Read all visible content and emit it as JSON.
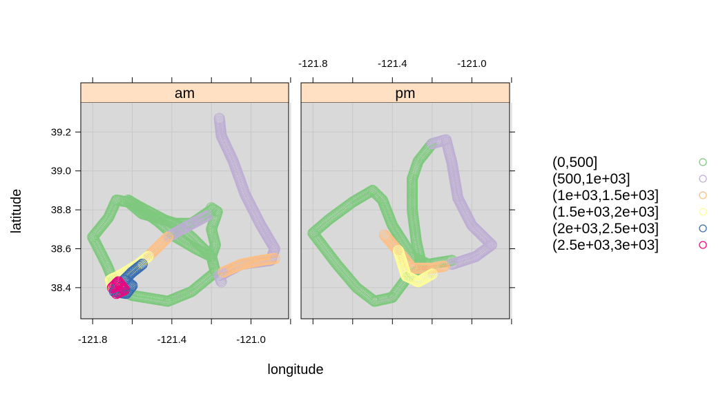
{
  "chart_data": {
    "type": "scatter",
    "xlabel": "longitude",
    "ylabel": "latitude",
    "xlim": [
      -121.86,
      -120.81
    ],
    "ylim": [
      38.24,
      39.35
    ],
    "x_ticks": [
      -121.8,
      -121.6,
      -121.4,
      -121.2,
      -121.0,
      -120.8
    ],
    "x_tick_labels": [
      "-121.8",
      "-121.4",
      "-121.0"
    ],
    "y_ticks": [
      38.4,
      38.6,
      38.8,
      39.0,
      39.2
    ],
    "y_tick_labels": [
      "38.4",
      "38.6",
      "38.8",
      "39.0",
      "39.2"
    ],
    "grid": true,
    "legend_position": "right",
    "legend": [
      {
        "label": "(0,500]",
        "color": "#7fc97f"
      },
      {
        "label": "(500,1e+03]",
        "color": "#beaed4"
      },
      {
        "label": "(1e+03,1.5e+03]",
        "color": "#fdc086"
      },
      {
        "label": "(1.5e+03,2e+03]",
        "color": "#ffff99"
      },
      {
        "label": "(2e+03,2.5e+03]",
        "color": "#386cb0"
      },
      {
        "label": "(2.5e+03,3e+03]",
        "color": "#f0027f"
      }
    ],
    "panels": [
      {
        "name": "am",
        "segments": [
          {
            "group": 0,
            "points": [
              [
                -121.2,
                38.8
              ],
              [
                -121.3,
                38.73
              ],
              [
                -121.38,
                38.73
              ],
              [
                -121.55,
                38.78
              ],
              [
                -121.62,
                38.84
              ],
              [
                -121.68,
                38.85
              ],
              [
                -121.72,
                38.76
              ],
              [
                -121.8,
                38.66
              ],
              [
                -121.73,
                38.52
              ],
              [
                -121.68,
                38.4
              ],
              [
                -121.6,
                38.36
              ],
              [
                -121.42,
                38.33
              ],
              [
                -121.3,
                38.38
              ],
              [
                -121.18,
                38.48
              ],
              [
                -121.2,
                38.56
              ],
              [
                -121.3,
                38.66
              ],
              [
                -121.37,
                38.72
              ],
              [
                -121.44,
                38.75
              ],
              [
                -121.57,
                38.82
              ],
              [
                -121.62,
                38.85
              ],
              [
                -121.47,
                38.74
              ],
              [
                -121.38,
                38.66
              ],
              [
                -121.28,
                38.6
              ],
              [
                -121.2,
                38.56
              ],
              [
                -121.18,
                38.62
              ],
              [
                -121.2,
                38.7
              ],
              [
                -121.17,
                38.79
              ],
              [
                -121.2,
                38.81
              ]
            ]
          },
          {
            "group": 1,
            "points": [
              [
                -121.22,
                38.77
              ],
              [
                -121.35,
                38.7
              ],
              [
                -121.42,
                38.66
              ]
            ]
          },
          {
            "group": 1,
            "points": [
              [
                -121.16,
                39.27
              ],
              [
                -121.15,
                39.18
              ],
              [
                -121.09,
                39.05
              ],
              [
                -121.03,
                38.88
              ],
              [
                -120.95,
                38.72
              ],
              [
                -120.88,
                38.6
              ],
              [
                -120.9,
                38.54
              ],
              [
                -121.05,
                38.52
              ],
              [
                -121.16,
                38.46
              ],
              [
                -121.15,
                38.43
              ]
            ]
          },
          {
            "group": 2,
            "points": [
              [
                -121.14,
                38.48
              ],
              [
                -121.05,
                38.52
              ],
              [
                -120.95,
                38.54
              ],
              [
                -120.88,
                38.55
              ]
            ]
          },
          {
            "group": 2,
            "points": [
              [
                -121.42,
                38.66
              ],
              [
                -121.48,
                38.6
              ],
              [
                -121.52,
                38.56
              ]
            ]
          },
          {
            "group": 3,
            "points": [
              [
                -121.52,
                38.56
              ],
              [
                -121.57,
                38.52
              ],
              [
                -121.65,
                38.47
              ],
              [
                -121.71,
                38.44
              ],
              [
                -121.7,
                38.4
              ],
              [
                -121.66,
                38.39
              ]
            ]
          },
          {
            "group": 4,
            "points": [
              [
                -121.55,
                38.52
              ],
              [
                -121.6,
                38.48
              ],
              [
                -121.64,
                38.44
              ],
              [
                -121.6,
                38.41
              ],
              [
                -121.63,
                38.37
              ],
              [
                -121.69,
                38.38
              ],
              [
                -121.67,
                38.43
              ]
            ]
          },
          {
            "group": 5,
            "points": [
              [
                -121.68,
                38.37
              ],
              [
                -121.64,
                38.39
              ],
              [
                -121.67,
                38.43
              ],
              [
                -121.7,
                38.4
              ]
            ]
          }
        ]
      },
      {
        "name": "pm",
        "segments": [
          {
            "group": 0,
            "points": [
              [
                -121.3,
                38.96
              ],
              [
                -121.27,
                39.05
              ],
              [
                -121.2,
                39.14
              ]
            ]
          },
          {
            "group": 0,
            "points": [
              [
                -121.3,
                38.96
              ],
              [
                -121.3,
                38.8
              ],
              [
                -121.28,
                38.64
              ],
              [
                -121.25,
                38.5
              ],
              [
                -121.32,
                38.46
              ],
              [
                -121.4,
                38.35
              ],
              [
                -121.49,
                38.33
              ],
              [
                -121.58,
                38.4
              ],
              [
                -121.68,
                38.52
              ],
              [
                -121.8,
                38.68
              ],
              [
                -121.72,
                38.75
              ],
              [
                -121.6,
                38.84
              ],
              [
                -121.5,
                38.9
              ],
              [
                -121.45,
                38.85
              ],
              [
                -121.4,
                38.72
              ],
              [
                -121.3,
                38.56
              ],
              [
                -121.22,
                38.52
              ],
              [
                -121.1,
                38.54
              ]
            ]
          },
          {
            "group": 1,
            "points": [
              [
                -121.2,
                39.14
              ],
              [
                -121.13,
                39.16
              ],
              [
                -121.1,
                39.04
              ],
              [
                -121.07,
                38.86
              ],
              [
                -121.0,
                38.72
              ],
              [
                -120.9,
                38.62
              ],
              [
                -120.98,
                38.56
              ],
              [
                -121.1,
                38.52
              ]
            ]
          },
          {
            "group": 2,
            "points": [
              [
                -121.44,
                38.67
              ],
              [
                -121.38,
                38.6
              ],
              [
                -121.3,
                38.5
              ],
              [
                -121.2,
                38.5
              ],
              [
                -121.14,
                38.51
              ]
            ]
          },
          {
            "group": 3,
            "points": [
              [
                -121.37,
                38.59
              ],
              [
                -121.33,
                38.46
              ],
              [
                -121.27,
                38.43
              ],
              [
                -121.2,
                38.47
              ]
            ]
          }
        ]
      }
    ]
  }
}
